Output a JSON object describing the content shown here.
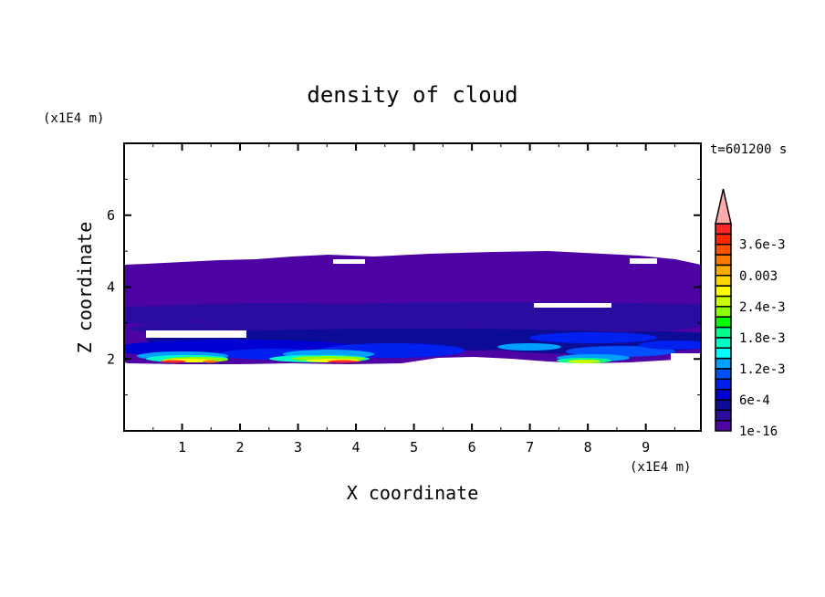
{
  "chart_data": {
    "type": "contour",
    "title": "density of cloud",
    "xlabel": "X coordinate",
    "ylabel": "Z coordinate",
    "x_unit": "(x1E4 m)",
    "y_unit": "(x1E4 m)",
    "time_label": "t=601200 s",
    "xlim": [
      0,
      9.95
    ],
    "ylim": [
      0,
      8
    ],
    "x_ticks": [
      "1",
      "2",
      "3",
      "4",
      "5",
      "6",
      "7",
      "8",
      "9"
    ],
    "y_ticks": [
      "2",
      "4",
      "6"
    ],
    "grid": false,
    "colorbar": {
      "levels_step": 0.0002,
      "labels": [
        "1e-16",
        "6e-4",
        "1.2e-3",
        "1.8e-3",
        "2.4e-3",
        "0.003",
        "3.6e-3"
      ],
      "colors": [
        "#4e04a4",
        "#2a0ca0",
        "#0c0c96",
        "#0000d2",
        "#0020f0",
        "#0050ff",
        "#00a0ff",
        "#00ffff",
        "#00ffc8",
        "#00ff8c",
        "#00ff00",
        "#8cff00",
        "#c8ff00",
        "#ffff00",
        "#ffd700",
        "#ffaa00",
        "#ff7800",
        "#ff5000",
        "#ff2800",
        "#ff2828"
      ],
      "over_color": "#ffaaaa",
      "extend": "max"
    }
  }
}
